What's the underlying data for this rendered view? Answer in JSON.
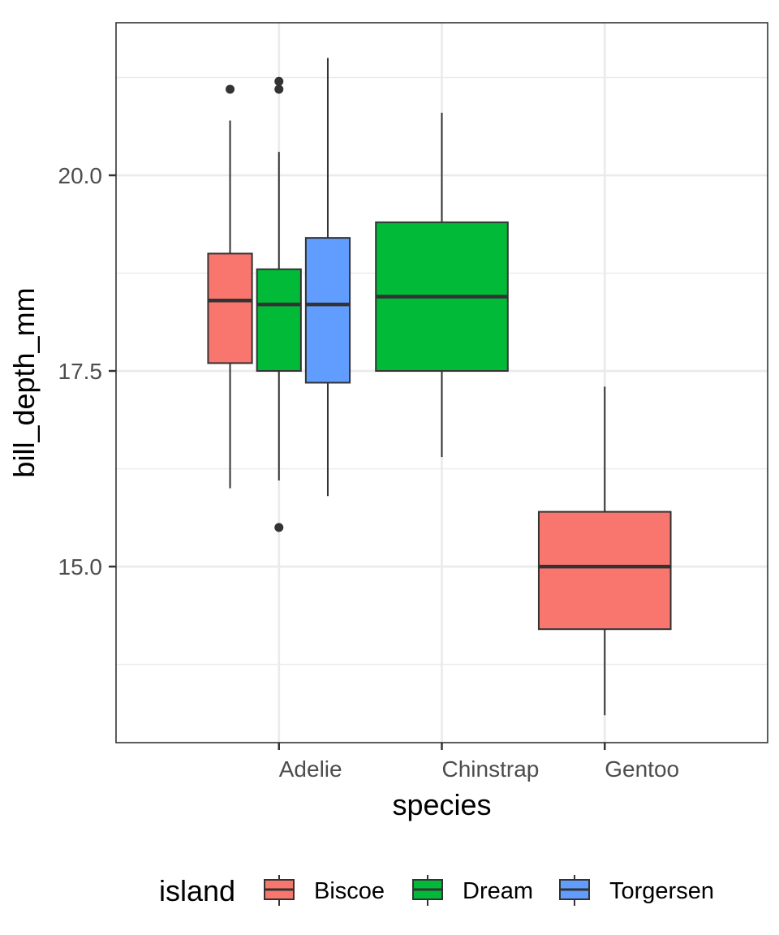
{
  "chart_data": {
    "type": "boxplot",
    "title": "",
    "xlabel": "species",
    "ylabel": "bill_depth_mm",
    "categories": [
      "Adelie",
      "Chinstrap",
      "Gentoo"
    ],
    "ylim": [
      12.75,
      21.95
    ],
    "y_ticks": [
      15.0,
      17.5,
      20.0
    ],
    "y_tick_labels": [
      "15.0",
      "17.5",
      "20.0"
    ],
    "grid": true,
    "legend": {
      "title": "island",
      "position": "bottom",
      "entries": [
        {
          "name": "Biscoe",
          "color": "#F8766D"
        },
        {
          "name": "Dream",
          "color": "#00BA38"
        },
        {
          "name": "Torgersen",
          "color": "#619CFF"
        }
      ]
    },
    "series": [
      {
        "name": "Biscoe",
        "color": "#F8766D",
        "boxes": [
          {
            "category": "Adelie",
            "lower_whisker": 16.0,
            "q1": 17.6,
            "median": 18.4,
            "q3": 19.0,
            "upper_whisker": 20.7,
            "outliers": [
              21.1
            ]
          },
          {
            "category": "Gentoo",
            "lower_whisker": 13.1,
            "q1": 14.2,
            "median": 15.0,
            "q3": 15.7,
            "upper_whisker": 17.3,
            "outliers": []
          }
        ]
      },
      {
        "name": "Dream",
        "color": "#00BA38",
        "boxes": [
          {
            "category": "Adelie",
            "lower_whisker": 16.1,
            "q1": 17.5,
            "median": 18.35,
            "q3": 18.8,
            "upper_whisker": 20.3,
            "outliers": [
              21.1,
              21.2,
              15.5
            ]
          },
          {
            "category": "Chinstrap",
            "lower_whisker": 16.4,
            "q1": 17.5,
            "median": 18.45,
            "q3": 19.4,
            "upper_whisker": 20.8,
            "outliers": []
          }
        ]
      },
      {
        "name": "Torgersen",
        "color": "#619CFF",
        "boxes": [
          {
            "category": "Adelie",
            "lower_whisker": 15.9,
            "q1": 17.35,
            "median": 18.35,
            "q3": 19.2,
            "upper_whisker": 21.5,
            "outliers": []
          }
        ]
      }
    ]
  }
}
